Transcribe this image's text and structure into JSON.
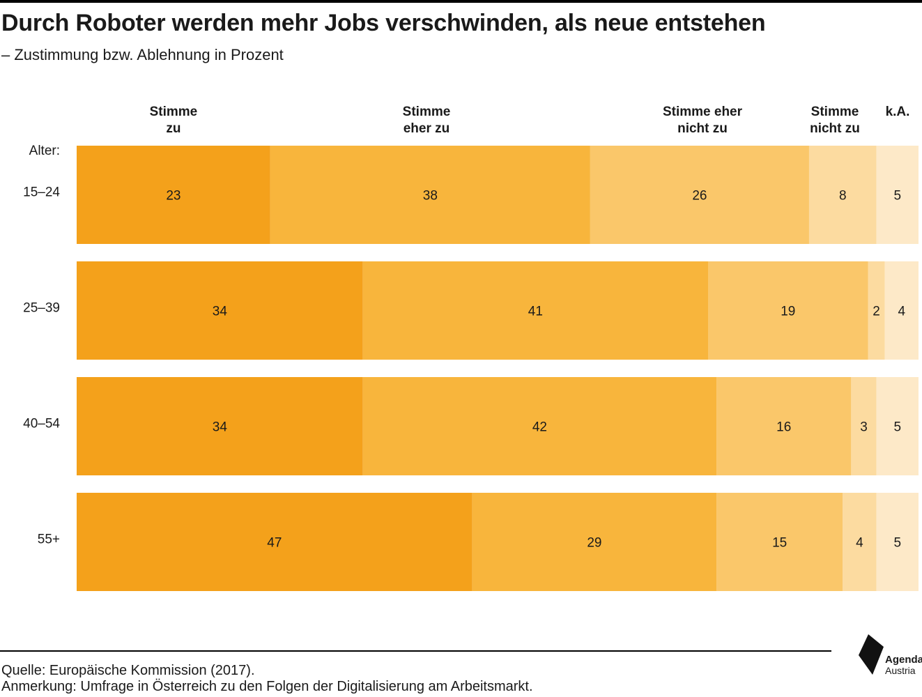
{
  "title": "Durch Roboter werden mehr Jobs verschwinden, als neue entstehen",
  "subtitle": "– Zustimmung bzw. Ablehnung in Prozent",
  "source": "Quelle: Europäische Kommission (2017).",
  "note": "Anmerkung: Umfrage in Österreich zu den Folgen der Digitalisierung am Arbeitsmarkt.",
  "logo": {
    "name": "Agenda",
    "sub": "Austria"
  },
  "chart_data": {
    "type": "bar",
    "orientation": "horizontal",
    "stacked": true,
    "row_axis_label": "Alter:",
    "categories": [
      "15–24",
      "25–39",
      "40–54",
      "55+"
    ],
    "series": [
      {
        "name": "Stimme zu",
        "header_lines": [
          "Stimme",
          "zu"
        ],
        "values": [
          23,
          34,
          34,
          47
        ]
      },
      {
        "name": "Stimme eher zu",
        "header_lines": [
          "Stimme",
          "eher zu"
        ],
        "values": [
          38,
          41,
          42,
          29
        ]
      },
      {
        "name": "Stimme eher nicht zu",
        "header_lines": [
          "Stimme eher",
          "nicht zu"
        ],
        "values": [
          26,
          19,
          16,
          15
        ]
      },
      {
        "name": "Stimme nicht zu",
        "header_lines": [
          "Stimme",
          "nicht zu"
        ],
        "values": [
          8,
          2,
          3,
          4
        ]
      },
      {
        "name": "k.A.",
        "header_lines": [
          "k.A."
        ],
        "values": [
          5,
          4,
          5,
          5
        ]
      }
    ],
    "xlim": [
      0,
      100
    ],
    "colors": [
      "#f4a11b",
      "#f8b53c",
      "#fac76a",
      "#fcdba0",
      "#fde9c8"
    ],
    "legend": "top"
  }
}
